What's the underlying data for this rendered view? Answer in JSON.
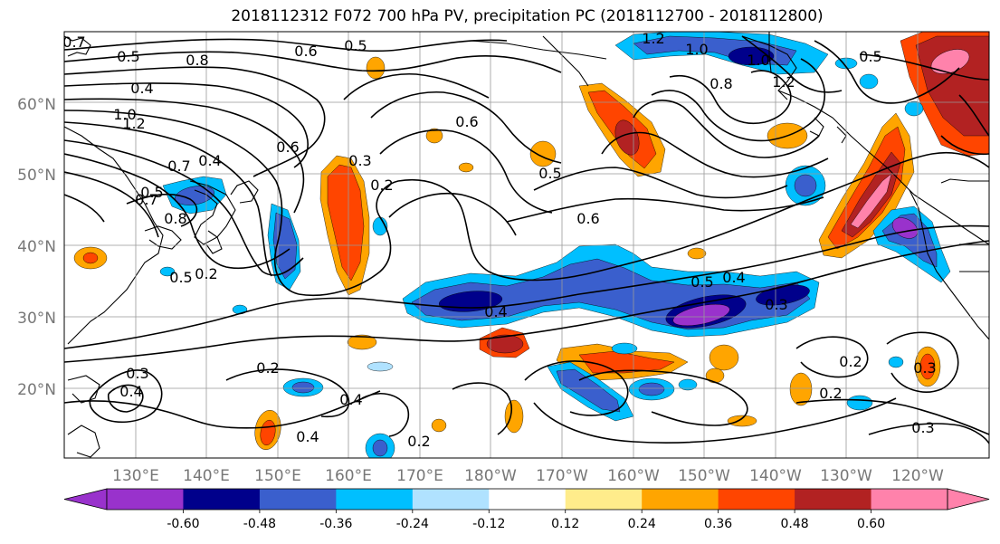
{
  "title": "2018112312 F072 700 hPa PV, precipitation PC (2018112700 - 2018112800)",
  "lat_labels": [
    "60°N",
    "50°N",
    "40°N",
    "30°N",
    "20°N"
  ],
  "lon_labels": [
    "130°E",
    "140°E",
    "150°E",
    "160°E",
    "170°E",
    "180°W",
    "170°W",
    "160°W",
    "150°W",
    "140°W",
    "130°W",
    "120°W"
  ],
  "colorbar": {
    "ticks": [
      "-0.60",
      "-0.48",
      "-0.36",
      "-0.24",
      "-0.12",
      "0.12",
      "0.24",
      "0.36",
      "0.48",
      "0.60"
    ],
    "colors": [
      "#9932cc",
      "#00008b",
      "#3a5fcd",
      "#00bfff",
      "#b0e2ff",
      "#ffffff",
      "#ffec8b",
      "#ffa500",
      "#ff4500",
      "#b22222",
      "#ff82ab"
    ]
  },
  "contour_labels": [
    "0.7",
    "0.5",
    "0.8",
    "0.6",
    "0.5",
    "1.2",
    "1.0",
    "1.0",
    "0.8",
    "1.2",
    "0.5",
    "0.4",
    "1.2",
    "1.0",
    "0.6",
    "0.6",
    "0.3",
    "0.2",
    "0.5",
    "0.6",
    "0.4",
    "0.7",
    "0.8",
    "0.7",
    "0.5",
    "0.4",
    "0.5",
    "0.4",
    "0.3",
    "0.2",
    "0.3",
    "0.2",
    "0.3",
    "0.2",
    "0.5",
    "0.4",
    "0.3",
    "0.2",
    "0.4",
    "0.4",
    "0.2"
  ]
}
